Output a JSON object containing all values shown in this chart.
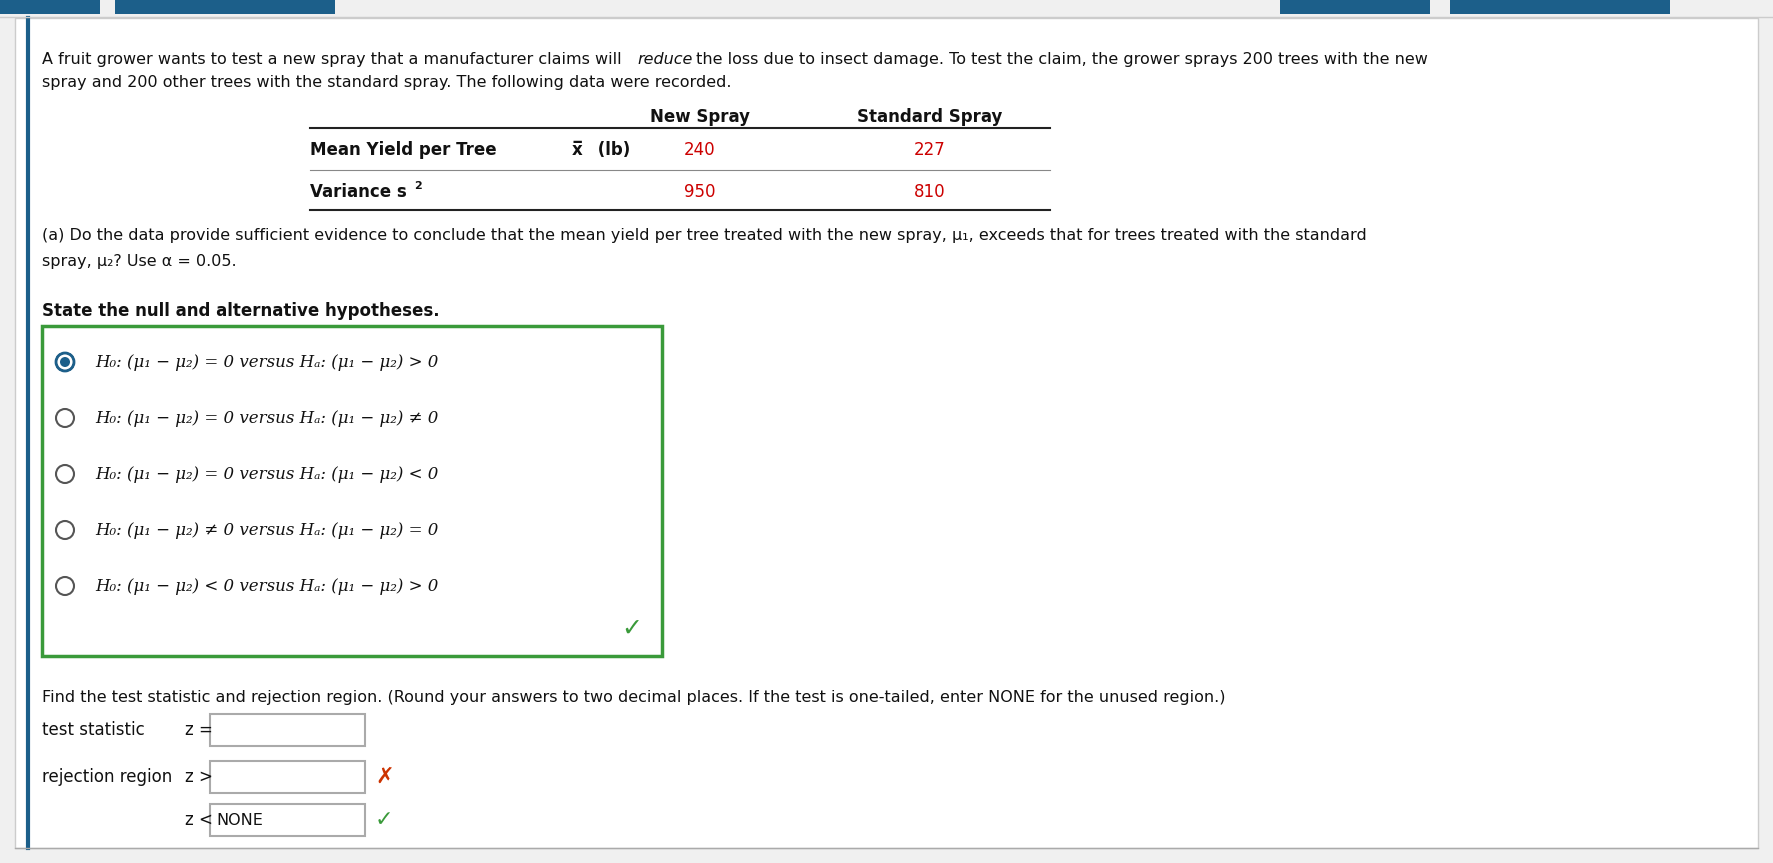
{
  "bg_color": "#f0f0f0",
  "content_bg": "#ffffff",
  "top_bar_color": "#1c5f8a",
  "left_border_color": "#1c5f8a",
  "intro_line1": "A fruit grower wants to test a new spray that a manufacturer claims will ",
  "intro_reduce": "reduce",
  "intro_line1b": " the loss due to insect damage. To test the claim, the grower sprays 200 trees with the new",
  "intro_line2": "spray and 200 other trees with the standard spray. The following data were recorded.",
  "table_col2": "New Spray",
  "table_col3": "Standard Spray",
  "table_row1_label": "Mean Yield per Tree ",
  "table_row1_xbar": "x̅",
  "table_row1_units": " (lb)",
  "table_row1_val1": "240",
  "table_row1_val2": "227",
  "table_row2_label": "Variance s",
  "table_row2_sup": "2",
  "table_row2_val1": "950",
  "table_row2_val2": "810",
  "value_color": "#cc0000",
  "part_a_line1": "(a) Do the data provide sufficient evidence to conclude that the mean yield per tree treated with the new spray, μ",
  "part_a_line1b": "1",
  "part_a_line1c": ", exceeds that for trees treated with the standard",
  "part_a_line2": "spray, μ",
  "part_a_line2b": "2",
  "part_a_line2c": "? Use α = 0.05.",
  "state_hyp": "State the null and alternative hypotheses.",
  "hyp_texts": [
    "H₀: (μ₁ − μ₂) = 0 versus Hₐ: (μ₁ − μ₂) > 0",
    "H₀: (μ₁ − μ₂) = 0 versus Hₐ: (μ₁ − μ₂) ≠ 0",
    "H₀: (μ₁ − μ₂) = 0 versus Hₐ: (μ₁ − μ₂) < 0",
    "H₀: (μ₁ − μ₂) ≠ 0 versus Hₐ: (μ₁ − μ₂) = 0",
    "H₀: (μ₁ − μ₂) < 0 versus Hₐ: (μ₁ − μ₂) > 0"
  ],
  "hyp_selected": [
    true,
    false,
    false,
    false,
    false
  ],
  "box_color": "#3a9a3a",
  "find_text": "Find the test statistic and rejection region. (Round your answers to two decimal places. If the test is one-tailed, enter NONE for the unused region.)",
  "test_stat_label": "test statistic",
  "rejection_label": "rejection region",
  "rejection_val2": "NONE",
  "check_color": "#3a9a3a",
  "x_color": "#cc3300",
  "radio_selected_color": "#1c5f8a",
  "radio_border_color": "#555555"
}
